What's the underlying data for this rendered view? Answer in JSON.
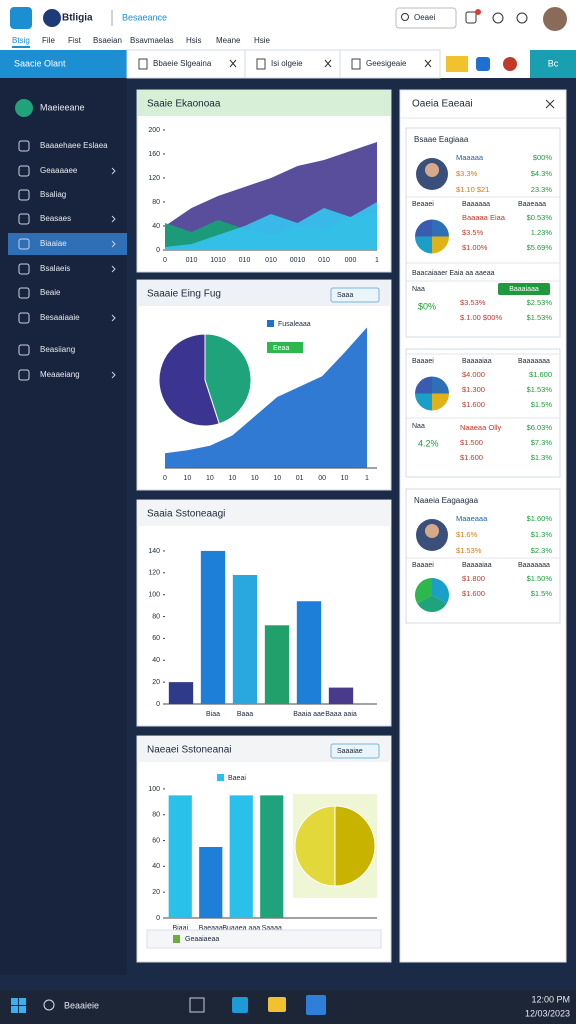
{
  "app": {
    "name": "Btligia",
    "subtitle": "Besaeance",
    "search": "Oeaei",
    "menu": [
      "Btsig",
      "File",
      "Fist",
      "Bsaeian",
      "Bsavmaelas",
      "Hsis",
      "Meane",
      "Hsie"
    ]
  },
  "tabs": {
    "active": "Saacie Olant",
    "items": [
      "Bbaeie Slgeaina",
      "Isi olgeie",
      "Geesigeaie"
    ],
    "corner": "Bc"
  },
  "sidebar": {
    "header": "Maeieeane",
    "items": [
      "Baaaehaee Eslaea",
      "Geaaaaee",
      "Bsaliag",
      "Beasaes",
      "Biaaiae",
      "Bsalaeis",
      "Beaie",
      "Besaaiaaie",
      "Beasiiang",
      "Meaaeiang"
    ]
  },
  "panels": [
    {
      "title": "Saaie Ekaonoaa",
      "type": "area",
      "categories": [
        "0",
        "010",
        "1010",
        "010",
        "010",
        "0010",
        "010",
        "000",
        "1"
      ],
      "ylim": [
        0,
        200
      ],
      "yticks": [
        0,
        40,
        80,
        120,
        160,
        200
      ],
      "series": [
        {
          "color": "#4b3f93",
          "values": [
            40,
            70,
            90,
            105,
            120,
            140,
            150,
            165,
            180
          ]
        },
        {
          "color": "#17a277",
          "values": [
            45,
            30,
            50,
            35,
            25,
            40,
            35,
            55,
            60
          ]
        },
        {
          "color": "#35c2ef",
          "values": [
            5,
            10,
            25,
            40,
            60,
            45,
            70,
            55,
            80
          ]
        }
      ]
    },
    {
      "title": "Saaaie Eing Fug",
      "type": "area-pie",
      "button": "Saaa",
      "legend": "Fusaleaaa",
      "tag": "Eeaa",
      "categories": [
        "0",
        "10",
        "10",
        "10",
        "10",
        "10",
        "01",
        "00",
        "10",
        "1"
      ],
      "ylim": [
        0,
        100
      ],
      "series": [
        {
          "color": "#1e6fd0",
          "values": [
            10,
            12,
            15,
            22,
            35,
            48,
            55,
            62,
            78,
            95
          ]
        }
      ],
      "pie": {
        "values": [
          45,
          55
        ],
        "colors": [
          "#1fa37a",
          "#3b3591"
        ]
      }
    },
    {
      "title": "Saaia Sstoneaagi",
      "type": "bar",
      "categories": [
        null,
        "Biaa",
        "Baaa",
        null,
        "Baaia aae",
        "Baaa aaia"
      ],
      "values": [
        20,
        140,
        118,
        72,
        94,
        15
      ],
      "colors": [
        "#2f3a8a",
        "#1e7fd8",
        "#29a8e0",
        "#22a06b",
        "#1e7fd8",
        "#4a3a8c"
      ],
      "ylim": [
        0,
        150
      ],
      "yticks": [
        0,
        20,
        40,
        60,
        80,
        100,
        120,
        140
      ]
    },
    {
      "title": "Naeaei Sstoneanai",
      "type": "bar-pie",
      "button": "Saaaiae",
      "legend": "Baeai",
      "footer": "Geaaiaeaa",
      "categories": [
        "Biaai",
        "Baeaaa",
        "Buaaea aaa",
        "Saaaa"
      ],
      "values": [
        95,
        55,
        95,
        95
      ],
      "colors": [
        "#29c0ea",
        "#1e7fd8",
        "#29c0ea",
        "#1fa37a"
      ],
      "ylim": [
        0,
        110
      ],
      "yticks": [
        0,
        20,
        40,
        60,
        80,
        100
      ],
      "pie": {
        "values": [
          50,
          50
        ],
        "colors": [
          "#c8b400",
          "#e3d83a"
        ]
      }
    }
  ],
  "side": {
    "title": "Oaeia Eaeaai",
    "cards": [
      {
        "title": "Bsaae Eagiaaa",
        "person": {
          "lines": [
            "Maaaaa",
            "$3.3%",
            "$1.10 $21"
          ],
          "values": [
            "$00%",
            "$4.3%",
            "23.3%"
          ]
        },
        "header": [
          "Beaaei",
          "Baaaaaa",
          "Baaeaaa"
        ],
        "rows": [
          [
            "Baaaaa Eiaa",
            "$0.53%"
          ],
          [
            "$3.5%",
            "1.23%"
          ],
          [
            "$1.00%",
            "$5.69%"
          ]
        ],
        "note": "Baacaiaaer Eaia aa aaeaa",
        "tag": "Naa",
        "badge": "$0%",
        "button": "Baaaiaaa",
        "rows2": [
          [
            "$3.53%",
            "$2.53%"
          ],
          [
            "$.1.00 $00%",
            "$1.53%"
          ]
        ]
      },
      {
        "header": [
          "Baaaei",
          "Baaaaiaa",
          "Baaaaaaa"
        ],
        "rows": [
          [
            "$4.000",
            "$1.600"
          ],
          [
            "$1.300",
            "$1.53%"
          ],
          [
            "$1.600",
            "$1.5%"
          ]
        ],
        "tag": "Naa",
        "badge": "4.2%",
        "rows2": [
          [
            "Naaeaa Olly",
            "$6.03%"
          ],
          [
            "$1.500",
            "$7.3%"
          ],
          [
            "$1.600",
            "$1.3%"
          ]
        ]
      },
      {
        "title": "Naaeia Eagaagaa",
        "person": {
          "lines": [
            "Maaeaaa",
            "$1.6%",
            "$1.53%"
          ],
          "values": [
            "$1.60%",
            "$1.3%",
            "$2.3%"
          ]
        },
        "header": [
          "Baaaei",
          "Baaaaiaa",
          "Baaaaaaa"
        ],
        "rows": [
          [
            "$1.800",
            "$1.50%"
          ],
          [
            "$1.600",
            "$1.5%"
          ]
        ]
      }
    ]
  },
  "taskbar": {
    "search": "Beaaieie",
    "time": "12:00 PM",
    "date": "12/03/2023"
  }
}
